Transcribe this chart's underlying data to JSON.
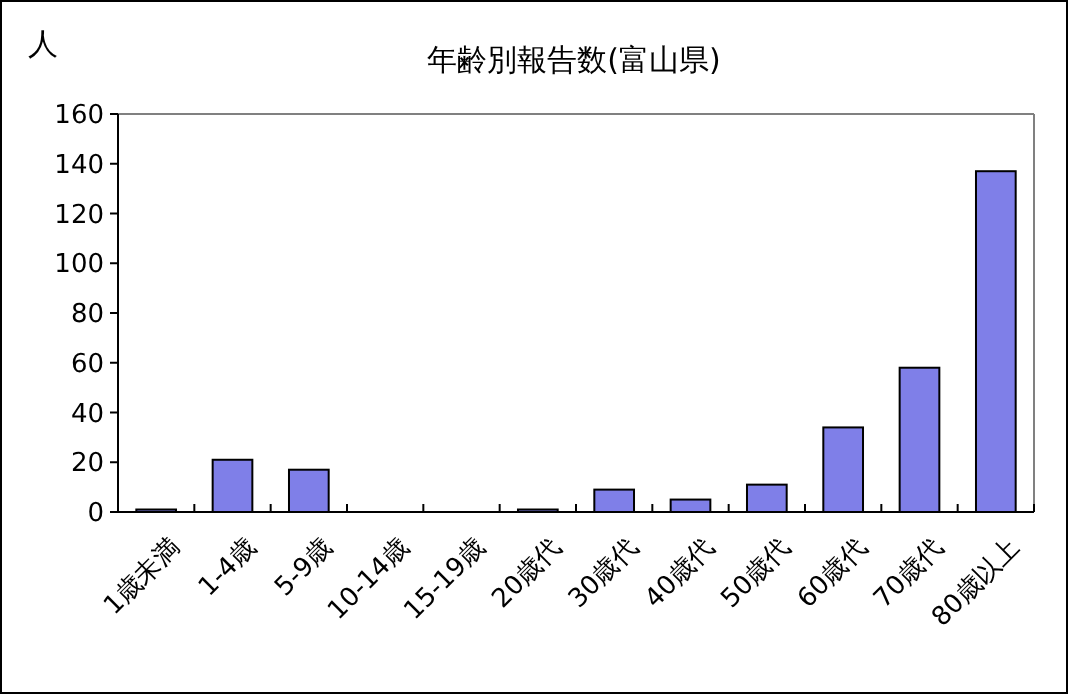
{
  "chart_data": {
    "type": "bar",
    "title": "年齢別報告数(富山県)",
    "ylabel": "人",
    "categories": [
      "1歳未満",
      "1-4歳",
      "5-9歳",
      "10-14歳",
      "15-19歳",
      "20歳代",
      "30歳代",
      "40歳代",
      "50歳代",
      "60歳代",
      "70歳代",
      "80歳以上"
    ],
    "values": [
      1,
      21,
      17,
      0,
      0,
      1,
      9,
      5,
      11,
      34,
      58,
      137
    ],
    "color": "#7f7fe8",
    "ylim": [
      0,
      160
    ],
    "yticks": [
      0,
      20,
      40,
      60,
      80,
      100,
      120,
      140,
      160
    ],
    "grid": false
  }
}
